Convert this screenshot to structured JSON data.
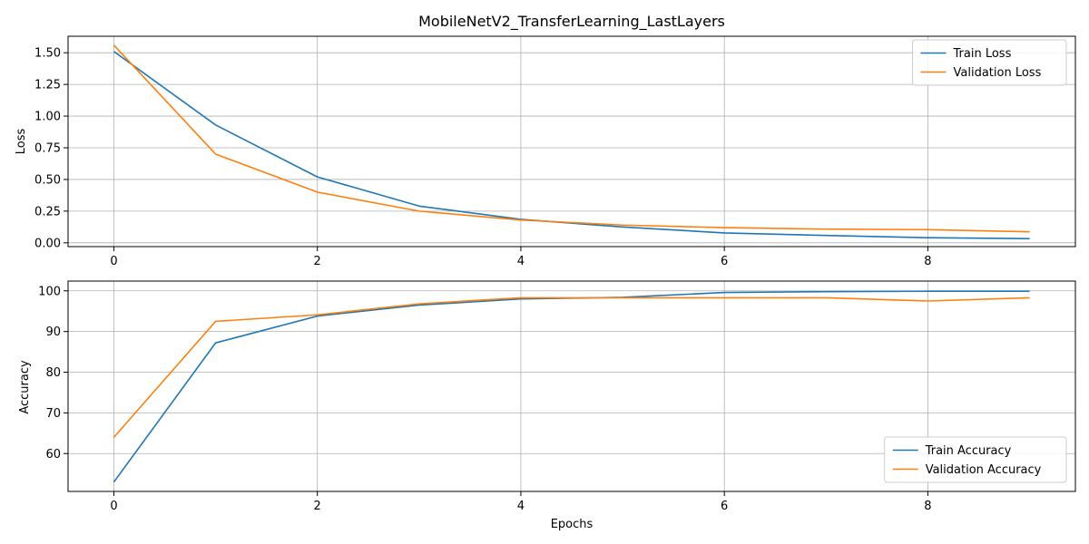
{
  "chart_data": [
    {
      "type": "line",
      "title": "MobileNetV2_TransferLearning_LastLayers",
      "xlabel": "",
      "ylabel": "Loss",
      "x": [
        0,
        1,
        2,
        3,
        4,
        5,
        6,
        7,
        8,
        9
      ],
      "xlim": [
        -0.45,
        9.45
      ],
      "ylim": [
        -0.03,
        1.63
      ],
      "xticks": [
        0,
        2,
        4,
        6,
        8
      ],
      "yticks": [
        0.0,
        0.25,
        0.5,
        0.75,
        1.0,
        1.25,
        1.5
      ],
      "ytick_labels": [
        "0.00",
        "0.25",
        "0.50",
        "0.75",
        "1.00",
        "1.25",
        "1.50"
      ],
      "grid": true,
      "legend": "top-right",
      "series": [
        {
          "name": "Train Loss",
          "color": "#1f77b4",
          "values": [
            1.51,
            0.93,
            0.52,
            0.29,
            0.185,
            0.125,
            0.078,
            0.058,
            0.04,
            0.033
          ]
        },
        {
          "name": "Validation Loss",
          "color": "#ff7f0e",
          "values": [
            1.56,
            0.7,
            0.4,
            0.25,
            0.18,
            0.14,
            0.12,
            0.108,
            0.104,
            0.087
          ]
        }
      ]
    },
    {
      "type": "line",
      "title": "",
      "xlabel": "Epochs",
      "ylabel": "Accuracy",
      "x": [
        0,
        1,
        2,
        3,
        4,
        5,
        6,
        7,
        8,
        9
      ],
      "xlim": [
        -0.45,
        9.45
      ],
      "ylim": [
        50.7,
        102.4
      ],
      "xticks": [
        0,
        2,
        4,
        6,
        8
      ],
      "yticks": [
        60,
        70,
        80,
        90,
        100
      ],
      "ytick_labels": [
        "60",
        "70",
        "80",
        "90",
        "100"
      ],
      "grid": true,
      "legend": "bottom-right",
      "series": [
        {
          "name": "Train Accuracy",
          "color": "#1f77b4",
          "values": [
            53.0,
            87.2,
            93.8,
            96.5,
            98.0,
            98.4,
            99.6,
            99.8,
            99.9,
            99.9
          ]
        },
        {
          "name": "Validation Accuracy",
          "color": "#ff7f0e",
          "values": [
            64.0,
            92.5,
            94.1,
            96.8,
            98.3,
            98.3,
            98.3,
            98.3,
            97.5,
            98.3
          ]
        }
      ]
    }
  ]
}
